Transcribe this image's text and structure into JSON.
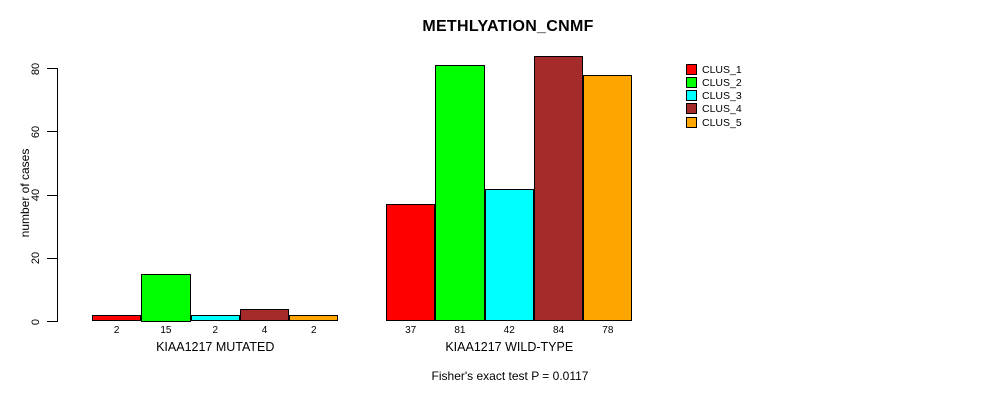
{
  "chart_data": {
    "type": "bar",
    "title": "METHLYATION_CNMF",
    "ylabel": "number of cases",
    "xlabel": "",
    "ylim": [
      0,
      80
    ],
    "yticks": [
      0,
      20,
      40,
      60,
      80
    ],
    "grid": false,
    "legend_position": "right",
    "categories": [
      "KIAA1217 MUTATED",
      "KIAA1217 WILD-TYPE"
    ],
    "series": [
      {
        "name": "CLUS_1",
        "color": "#ff0000",
        "values": [
          2,
          37
        ]
      },
      {
        "name": "CLUS_2",
        "color": "#00ff00",
        "values": [
          15,
          81
        ]
      },
      {
        "name": "CLUS_3",
        "color": "#00ffff",
        "values": [
          2,
          42
        ]
      },
      {
        "name": "CLUS_4",
        "color": "#a52a2a",
        "values": [
          4,
          84
        ]
      },
      {
        "name": "CLUS_5",
        "color": "#ffa500",
        "values": [
          2,
          78
        ]
      }
    ],
    "bar_value_labels": {
      "KIAA1217 MUTATED": [
        2,
        15,
        2,
        4,
        2
      ],
      "KIAA1217 WILD-TYPE": [
        37,
        81,
        42,
        84,
        78
      ]
    },
    "annotation": "Fisher's exact test P = 0.0117"
  }
}
